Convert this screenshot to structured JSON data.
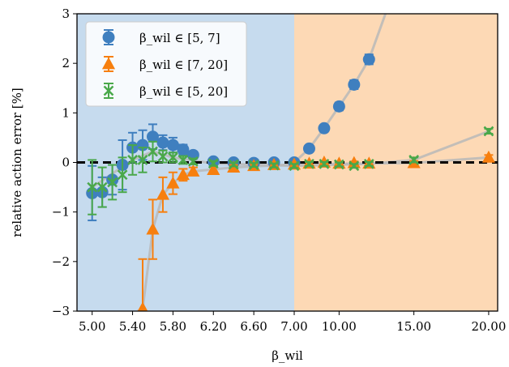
{
  "chart_data": {
    "type": "scatter",
    "xlabel": "β_wil",
    "ylabel": "relative action error [%]",
    "ylim": [
      -3,
      3
    ],
    "yticks": [
      -3,
      -2,
      -1,
      0,
      1,
      2,
      3
    ],
    "ytick_labels": [
      "−3",
      "−2",
      "−1",
      "0",
      "1",
      "2",
      "3"
    ],
    "xticks": [
      5.0,
      5.4,
      5.8,
      6.2,
      6.6,
      7.0,
      10.0,
      15.0,
      20.0
    ],
    "xtick_labels": [
      "5.00",
      "5.40",
      "5.80",
      "6.20",
      "6.60",
      "7.00",
      "10.00",
      "15.00",
      "20.00"
    ],
    "x_scale": "piecewise: linear 4.85–7.0 (left half), linear 7.0–20.6 (right half)",
    "xlim": [
      4.85,
      20.6
    ],
    "regions": [
      {
        "from": 4.85,
        "to": 7.0,
        "color": "#c6dbee"
      },
      {
        "from": 7.0,
        "to": 20.6,
        "color": "#fdd9b5"
      }
    ],
    "reference_line": {
      "y": 0,
      "style": "dashed",
      "color": "#000000"
    },
    "legend": {
      "placement": "top-left"
    },
    "series": [
      {
        "name": "β_wil ∈ [5, 7]",
        "marker": "circle",
        "color": "#3f7fbf",
        "points": [
          [
            5.0,
            -0.62,
            0.55
          ],
          [
            5.1,
            -0.6,
            0.3
          ],
          [
            5.2,
            -0.35,
            0.3
          ],
          [
            5.3,
            -0.05,
            0.5
          ],
          [
            5.4,
            0.3,
            0.3
          ],
          [
            5.5,
            0.35,
            0.3
          ],
          [
            5.6,
            0.52,
            0.25
          ],
          [
            5.7,
            0.4,
            0.15
          ],
          [
            5.8,
            0.35,
            0.15
          ],
          [
            5.9,
            0.26,
            0.1
          ],
          [
            6.0,
            0.15,
            0.07
          ],
          [
            6.2,
            0.02,
            0.05
          ],
          [
            6.4,
            0.0,
            0.04
          ],
          [
            6.6,
            -0.01,
            0.04
          ],
          [
            6.8,
            0.0,
            0.03
          ],
          [
            7.0,
            0.0,
            0.03
          ],
          [
            8.0,
            0.28,
            0.05
          ],
          [
            9.0,
            0.69,
            0.07
          ],
          [
            10.0,
            1.13,
            0.08
          ],
          [
            11.0,
            1.57,
            0.09
          ],
          [
            12.0,
            2.08,
            0.1
          ]
        ],
        "trend_line": [
          [
            7.0,
            0.0
          ],
          [
            8.0,
            0.28
          ],
          [
            9.0,
            0.69
          ],
          [
            10.0,
            1.13
          ],
          [
            11.0,
            1.57
          ],
          [
            12.0,
            2.08
          ],
          [
            13.1,
            3.0
          ]
        ]
      },
      {
        "name": "β_wil ∈ [7, 20]",
        "marker": "triangle",
        "color": "#f77f0e",
        "points": [
          [
            5.5,
            -2.95,
            1.0
          ],
          [
            5.6,
            -1.35,
            0.6
          ],
          [
            5.7,
            -0.65,
            0.35
          ],
          [
            5.8,
            -0.42,
            0.22
          ],
          [
            5.9,
            -0.25,
            0.12
          ],
          [
            6.0,
            -0.18,
            0.08
          ],
          [
            6.2,
            -0.15,
            0.06
          ],
          [
            6.4,
            -0.1,
            0.05
          ],
          [
            6.6,
            -0.07,
            0.04
          ],
          [
            6.8,
            -0.05,
            0.03
          ],
          [
            7.0,
            -0.04,
            0.03
          ],
          [
            8.0,
            -0.02,
            0.03
          ],
          [
            9.0,
            0.0,
            0.03
          ],
          [
            10.0,
            -0.02,
            0.03
          ],
          [
            11.0,
            -0.01,
            0.03
          ],
          [
            12.0,
            -0.02,
            0.03
          ],
          [
            15.0,
            -0.01,
            0.04
          ],
          [
            20.0,
            0.1,
            0.05
          ]
        ],
        "trend_line": [
          [
            5.45,
            -3.0
          ],
          [
            5.5,
            -2.95
          ],
          [
            5.6,
            -1.35
          ],
          [
            5.7,
            -0.65
          ],
          [
            5.8,
            -0.42
          ],
          [
            5.9,
            -0.25
          ],
          [
            6.0,
            -0.18
          ],
          [
            6.4,
            -0.1
          ],
          [
            7.0,
            -0.04
          ],
          [
            12.0,
            -0.02
          ],
          [
            15.0,
            -0.01
          ],
          [
            20.0,
            0.1
          ]
        ]
      },
      {
        "name": "β_wil ∈ [5, 20]",
        "marker": "x",
        "color": "#4aa84a",
        "points": [
          [
            5.0,
            -0.5,
            0.55
          ],
          [
            5.1,
            -0.5,
            0.4
          ],
          [
            5.2,
            -0.4,
            0.35
          ],
          [
            5.3,
            -0.25,
            0.35
          ],
          [
            5.4,
            0.05,
            0.3
          ],
          [
            5.5,
            0.05,
            0.25
          ],
          [
            5.6,
            0.22,
            0.2
          ],
          [
            5.7,
            0.12,
            0.12
          ],
          [
            5.8,
            0.1,
            0.1
          ],
          [
            5.9,
            0.05,
            0.08
          ],
          [
            6.0,
            0.02,
            0.06
          ],
          [
            6.2,
            -0.02,
            0.05
          ],
          [
            6.4,
            -0.04,
            0.04
          ],
          [
            6.6,
            -0.05,
            0.04
          ],
          [
            6.8,
            -0.06,
            0.04
          ],
          [
            7.0,
            -0.07,
            0.04
          ],
          [
            8.0,
            -0.03,
            0.04
          ],
          [
            9.0,
            -0.03,
            0.04
          ],
          [
            10.0,
            -0.04,
            0.04
          ],
          [
            11.0,
            -0.07,
            0.04
          ],
          [
            12.0,
            -0.03,
            0.04
          ],
          [
            15.0,
            0.05,
            0.05
          ],
          [
            20.0,
            0.63,
            0.05
          ]
        ],
        "trend_line": [
          [
            5.0,
            -0.5
          ],
          [
            5.4,
            0.05
          ],
          [
            5.6,
            0.22
          ],
          [
            5.8,
            0.1
          ],
          [
            6.2,
            -0.02
          ],
          [
            7.0,
            -0.07
          ],
          [
            12.0,
            -0.03
          ],
          [
            15.0,
            0.05
          ],
          [
            20.0,
            0.63
          ]
        ]
      }
    ]
  }
}
